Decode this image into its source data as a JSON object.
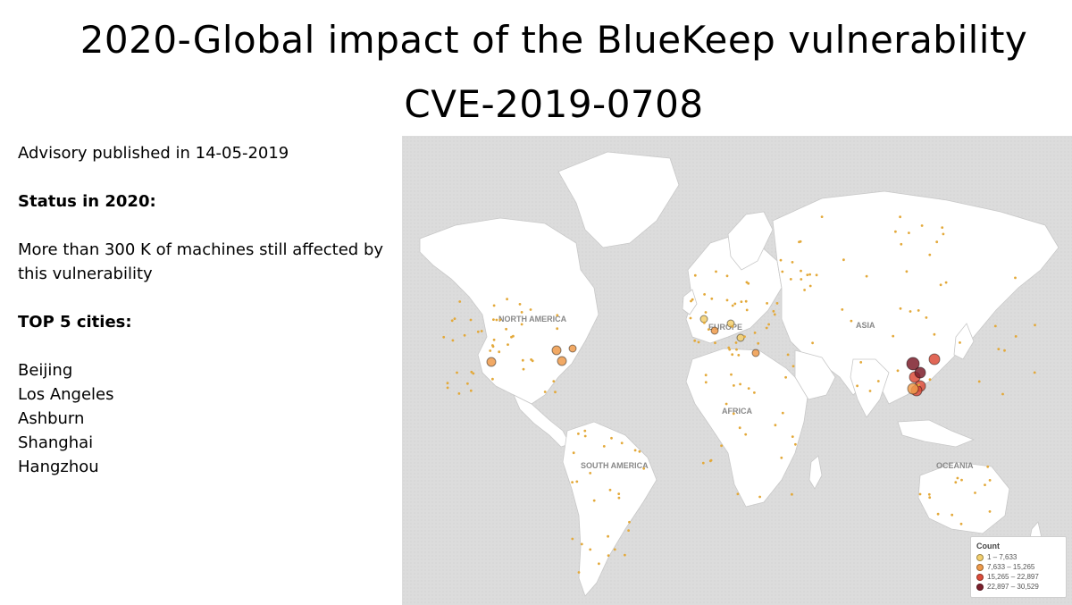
{
  "header": {
    "title_line1": "2020-Global impact of the BlueKeep vulnerability",
    "title_line2": "CVE-2019-0708"
  },
  "info": {
    "advisory": "Advisory published in 14-05-2019",
    "status_heading": "Status in 2020:",
    "status_text": "More than 300 K of machines still affected by this vulnerability",
    "top_heading": "TOP 5 cities:",
    "cities": [
      "Beijing",
      "Los Angeles",
      "Ashburn",
      "Shanghai",
      "Hangzhou"
    ]
  },
  "map": {
    "region_labels": [
      "NORTH AMERICA",
      "EUROPE",
      "ASIA",
      "AFRICA",
      "SOUTH AMERICA",
      "OCEANIA"
    ],
    "legend": {
      "title": "Count",
      "items": [
        {
          "label": "1 – 7,633",
          "color": "#f3cf6e"
        },
        {
          "label": "7,633 – 15,265",
          "color": "#ee9a4a"
        },
        {
          "label": "15,265 – 22,897",
          "color": "#dc4c3a"
        },
        {
          "label": "22,897 – 30,529",
          "color": "#7c1f2c"
        }
      ]
    },
    "colors": {
      "ocean": "#dcdcdc",
      "land": "#ffffff",
      "borders": "#c8c8c8"
    }
  }
}
